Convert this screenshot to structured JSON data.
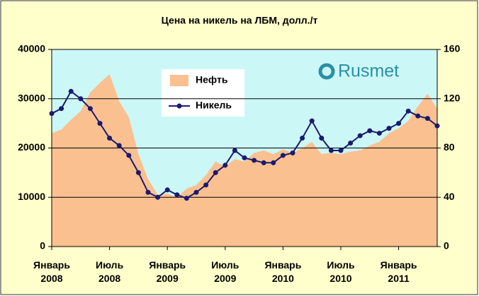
{
  "chart_data": {
    "type": "area-line",
    "title": "Цена на никель на ЛБМ, долл./т",
    "brand": "Rusmet",
    "categories": [
      "Январь 2008",
      null,
      null,
      null,
      null,
      null,
      "Июль 2008",
      null,
      null,
      null,
      null,
      null,
      "Январь 2009",
      null,
      null,
      null,
      null,
      null,
      "Июль 2009",
      null,
      null,
      null,
      null,
      null,
      "Январь 2010",
      null,
      null,
      null,
      null,
      null,
      "Июль 2010",
      null,
      null,
      null,
      null,
      null,
      "Январь 2011",
      null,
      null,
      null,
      null
    ],
    "series": [
      {
        "name": "Нефть",
        "color": "#fac090",
        "axis": "y2",
        "kind": "area",
        "values": [
          92,
          95,
          103,
          110,
          125,
          133,
          140,
          118,
          105,
          75,
          55,
          42,
          43,
          40,
          47,
          50,
          58,
          69,
          65,
          71,
          69,
          76,
          78,
          75,
          79,
          76,
          80,
          85,
          75,
          76,
          75,
          77,
          78,
          82,
          85,
          92,
          96,
          102,
          114,
          124,
          112
        ]
      },
      {
        "name": "Никель",
        "color": "#1a1a6e",
        "kind": "line",
        "values": [
          27000,
          28000,
          31500,
          30000,
          28000,
          25000,
          22000,
          20500,
          18500,
          15000,
          11000,
          10000,
          11500,
          10500,
          9800,
          11000,
          12500,
          15000,
          16500,
          19500,
          18000,
          17500,
          17000,
          17000,
          18500,
          19000,
          22000,
          25500,
          22000,
          19500,
          19500,
          21000,
          22500,
          23500,
          23000,
          24000,
          25000,
          27500,
          26500,
          26000,
          24500
        ]
      }
    ],
    "ylim": [
      0,
      40000
    ],
    "yticks": [
      0,
      10000,
      20000,
      30000,
      40000
    ],
    "y2lim": [
      0,
      160
    ],
    "y2ticks": [
      0,
      40,
      80,
      120,
      160
    ],
    "grid": true
  }
}
